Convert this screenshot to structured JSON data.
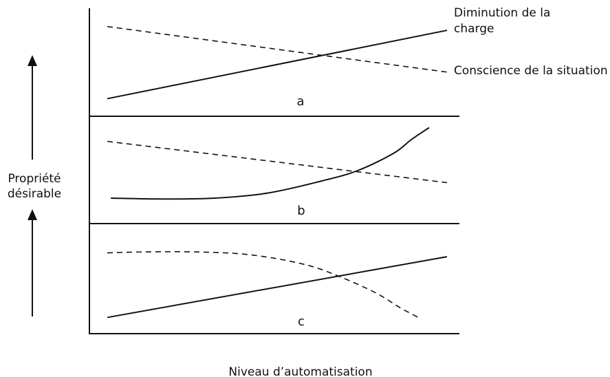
{
  "chart_data": {
    "type": "line",
    "xlabel": "Niveau d’automatisation",
    "ylabel": [
      "Propriété",
      "désirable"
    ],
    "legend": {
      "solid": [
        "Diminution de la",
        "charge"
      ],
      "dashed": "Conscience de la situation",
      "placement": "top-right"
    },
    "grid": false,
    "panels": [
      {
        "label": "a",
        "series": [
          {
            "name": "Diminution de la charge",
            "style": "solid",
            "x": [
              0.05,
              1.0
            ],
            "y": [
              0.12,
              0.84
            ]
          },
          {
            "name": "Conscience de la situation",
            "style": "dashed",
            "x": [
              0.05,
              1.0
            ],
            "y": [
              0.88,
              0.4
            ]
          }
        ]
      },
      {
        "label": "b",
        "series": [
          {
            "name": "Diminution de la charge",
            "style": "solid",
            "x": [
              0.06,
              0.2,
              0.35,
              0.5,
              0.65,
              0.75,
              0.85,
              0.9,
              0.95
            ],
            "y": [
              0.16,
              0.15,
              0.16,
              0.22,
              0.36,
              0.48,
              0.68,
              0.84,
              0.98
            ]
          },
          {
            "name": "Conscience de la situation",
            "style": "dashed",
            "x": [
              0.05,
              1.0
            ],
            "y": [
              0.82,
              0.34
            ]
          }
        ]
      },
      {
        "label": "c",
        "series": [
          {
            "name": "Diminution de la charge",
            "style": "solid",
            "x": [
              0.05,
              1.0
            ],
            "y": [
              0.12,
              0.76
            ]
          },
          {
            "name": "Conscience de la situation",
            "style": "dashed",
            "x": [
              0.05,
              0.15,
              0.3,
              0.45,
              0.6,
              0.7,
              0.8,
              0.87,
              0.92
            ],
            "y": [
              0.8,
              0.81,
              0.81,
              0.78,
              0.68,
              0.55,
              0.38,
              0.22,
              0.12
            ]
          }
        ]
      }
    ]
  }
}
